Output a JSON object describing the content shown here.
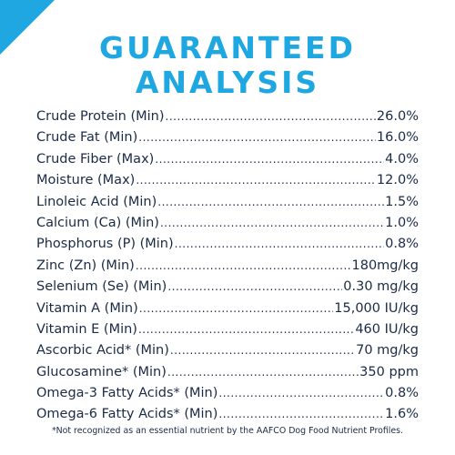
{
  "colors": {
    "accent": "#1ea7e1",
    "text": "#1b2a45"
  },
  "title": {
    "line1": "GUARANTEED",
    "line2": "ANALYSIS"
  },
  "nutrients": [
    {
      "label": "Crude Protein (Min)",
      "value": "26.0%"
    },
    {
      "label": "Crude Fat (Min)",
      "value": "16.0%"
    },
    {
      "label": "Crude Fiber (Max)",
      "value": "4.0%"
    },
    {
      "label": "Moisture (Max)",
      "value": "12.0%"
    },
    {
      "label": "Linoleic Acid (Min)",
      "value": "1.5%"
    },
    {
      "label": "Calcium (Ca) (Min)",
      "value": "1.0%"
    },
    {
      "label": "Phosphorus (P) (Min)",
      "value": "0.8%"
    },
    {
      "label": "Zinc (Zn) (Min)",
      "value": "180mg/kg"
    },
    {
      "label": "Selenium (Se) (Min)",
      "value": "0.30 mg/kg"
    },
    {
      "label": "Vitamin A (Min)",
      "value": "15,000 IU/kg"
    },
    {
      "label": "Vitamin E (Min)",
      "value": "460 IU/kg"
    },
    {
      "label": "Ascorbic Acid* (Min)",
      "value": "70 mg/kg"
    },
    {
      "label": "Glucosamine* (Min)",
      "value": "350 ppm"
    },
    {
      "label": "Omega-3 Fatty Acids* (Min)",
      "value": "0.8%"
    },
    {
      "label": "Omega-6 Fatty Acids* (Min)",
      "value": "1.6%"
    }
  ],
  "footnote": "*Not recognized as an essential nutrient by the AAFCO Dog Food Nutrient Profiles."
}
